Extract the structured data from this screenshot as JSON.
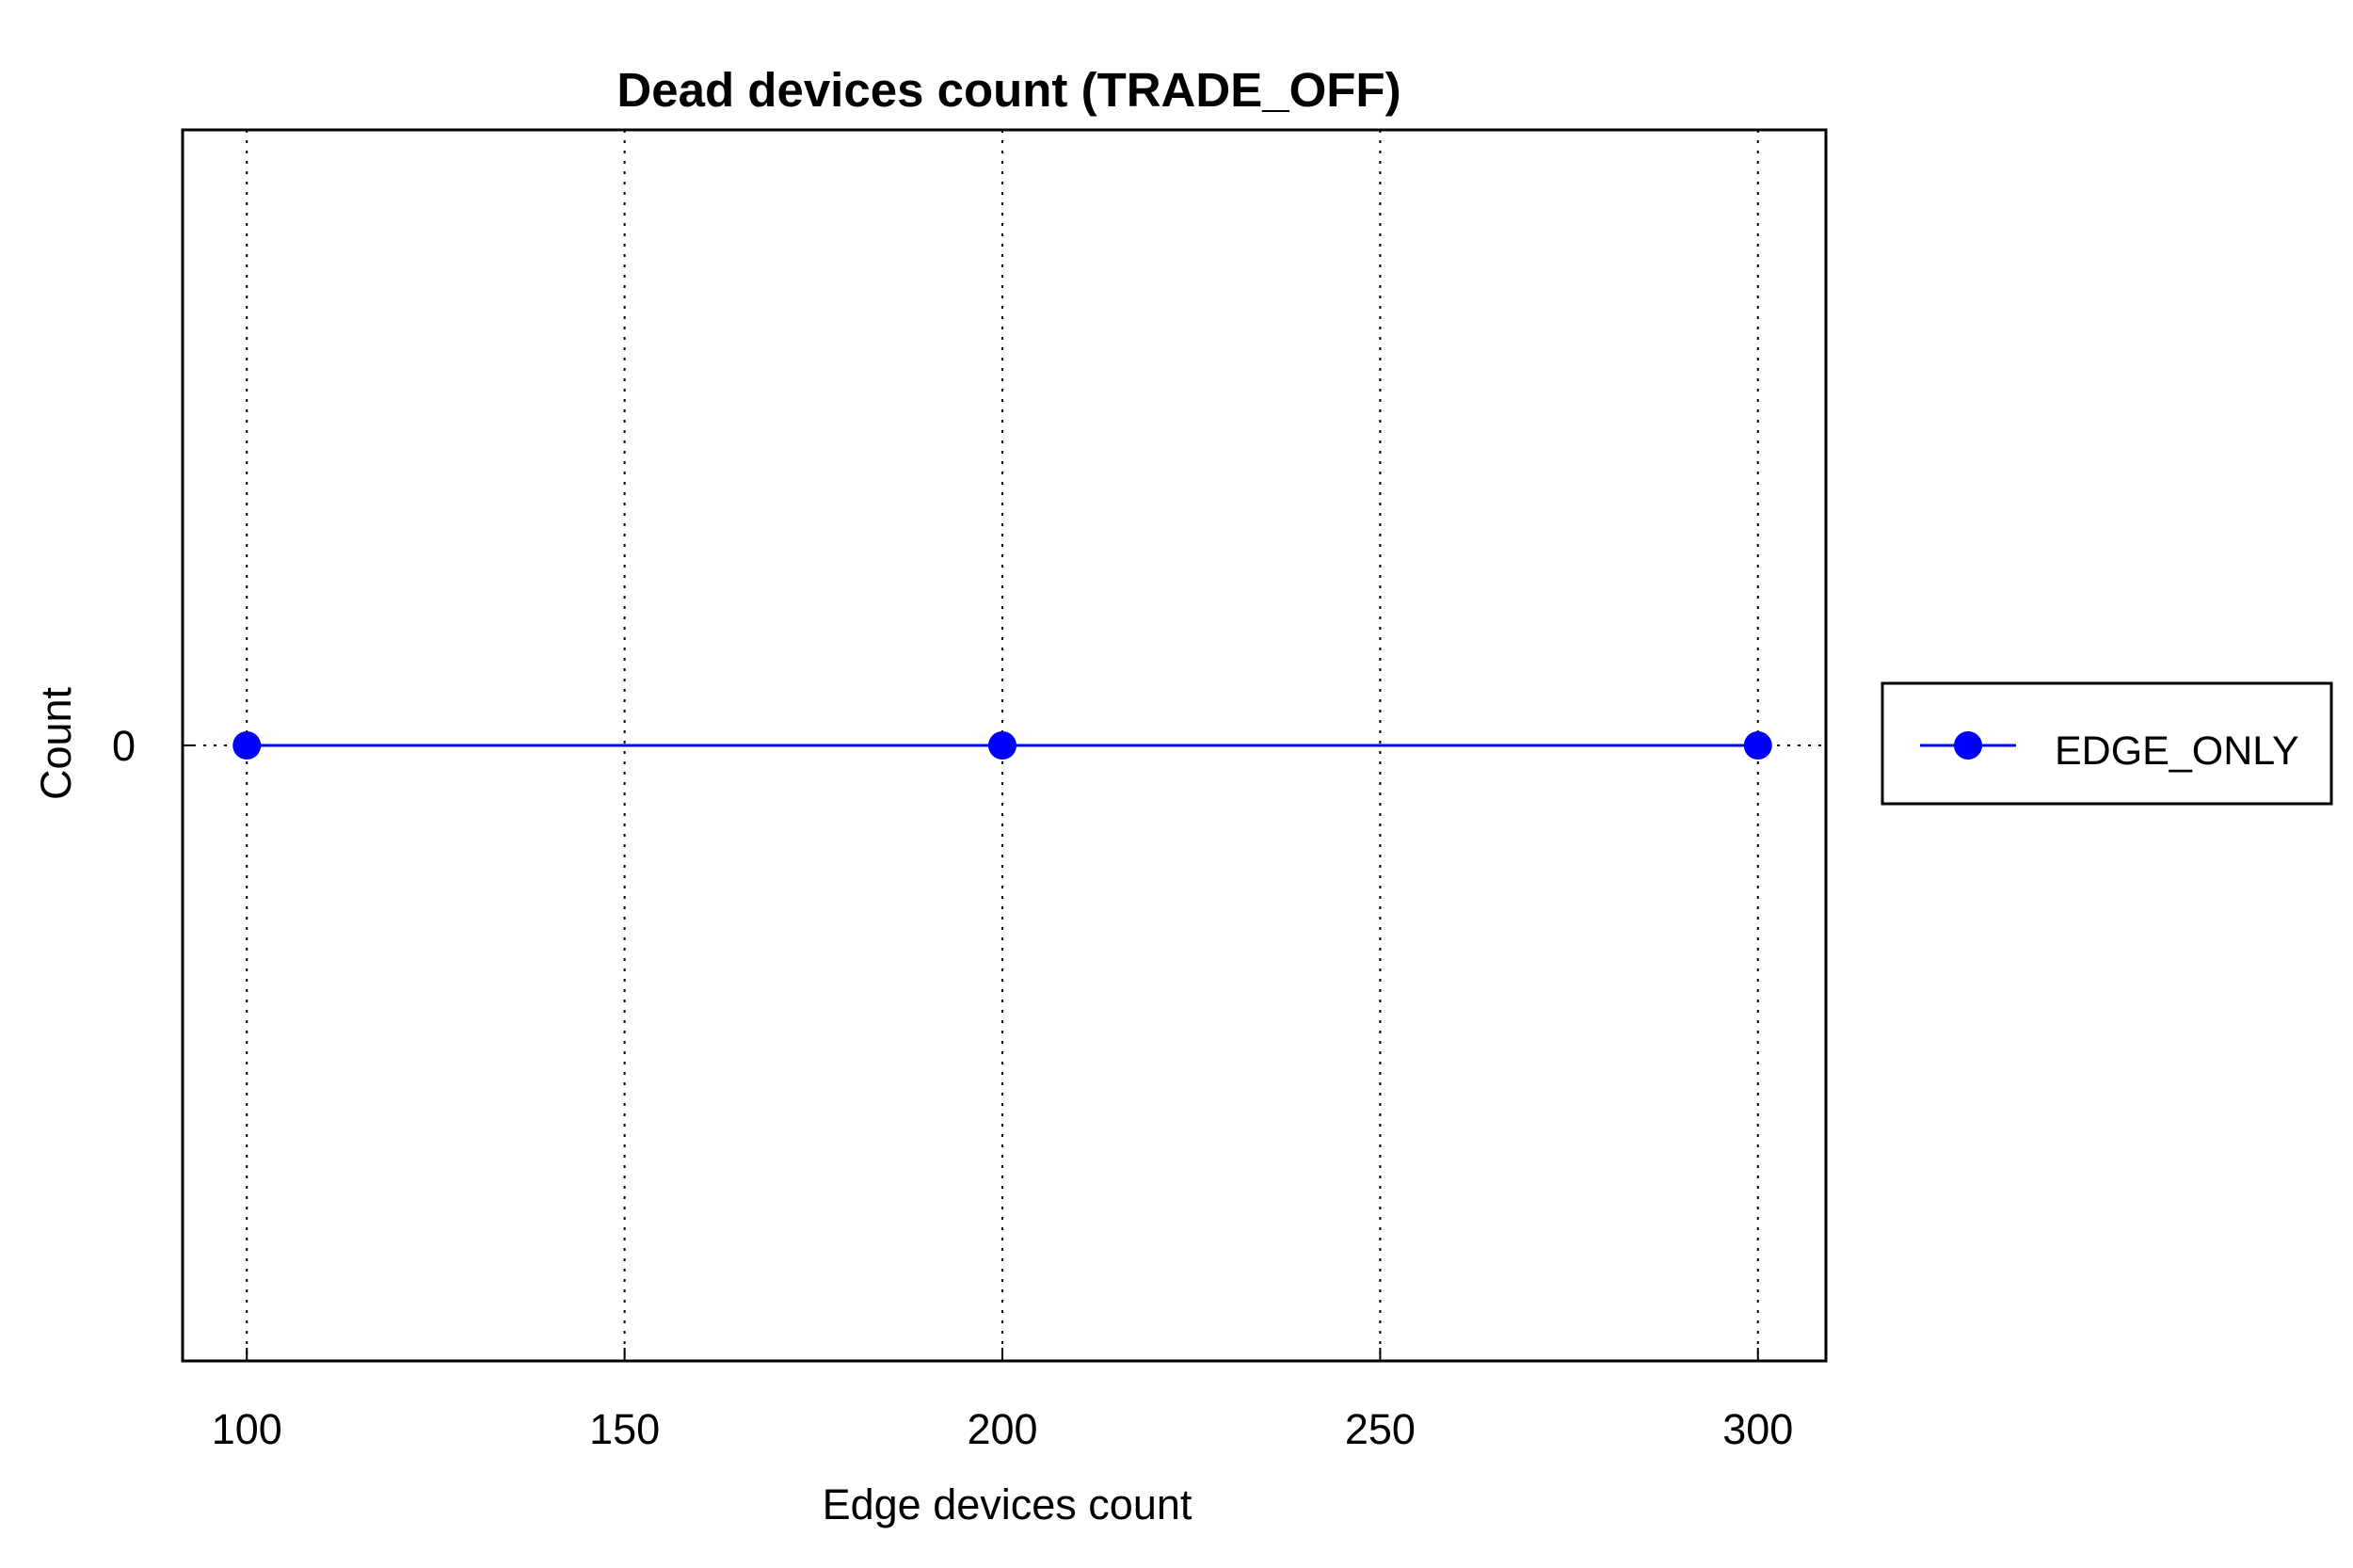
{
  "chart_data": {
    "type": "line",
    "title": "Dead devices count (TRADE_OFF)",
    "xlabel": "Edge devices count",
    "ylabel": "Count",
    "x_ticks": [
      100,
      150,
      200,
      250,
      300
    ],
    "y_ticks": [
      0
    ],
    "xlim": [
      91.5,
      309
    ],
    "ylim": [
      -1,
      1
    ],
    "grid": "vertical dotted",
    "legend_position": "outside-right",
    "series": [
      {
        "name": "EDGE_ONLY",
        "color": "#0000ff",
        "marker": "circle",
        "x": [
          100,
          200,
          300
        ],
        "y": [
          0,
          0,
          0
        ]
      }
    ]
  }
}
